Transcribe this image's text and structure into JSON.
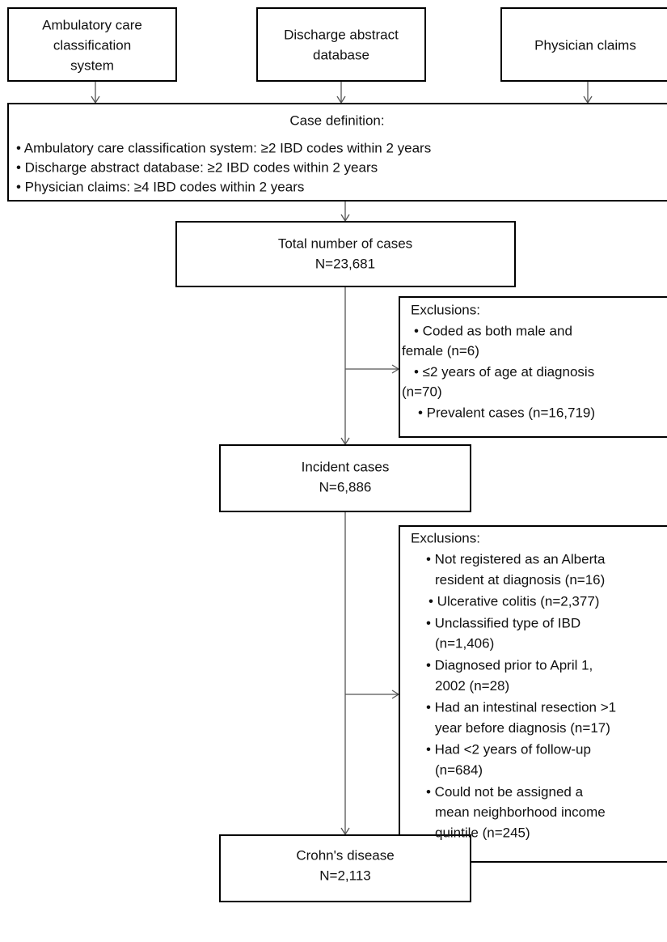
{
  "sources": [
    {
      "lines": [
        "Ambulatory care",
        "classification",
        "system"
      ]
    },
    {
      "lines": [
        "Discharge abstract",
        "database"
      ]
    },
    {
      "lines": [
        "Physician claims"
      ]
    }
  ],
  "case_definition": {
    "title": "Case definition:",
    "items": [
      "• Ambulatory care classification system: ≥2 IBD codes within 2 years",
      "• Discharge abstract database: ≥2 IBD codes within 2 years",
      "• Physician claims: ≥4 IBD codes within 2 years"
    ]
  },
  "total_cases": {
    "label": "Total number of cases",
    "count": "N=23,681"
  },
  "exclusions_1": {
    "title": "Exclusions:",
    "items": [
      [
        "• Coded as both male and",
        "female (n=6)"
      ],
      [
        "• ≤2 years of age at diagnosis",
        "(n=70)"
      ],
      [
        "• Prevalent cases (n=16,719)"
      ]
    ]
  },
  "incident_cases": {
    "label": "Incident cases",
    "count": "N=6,886"
  },
  "exclusions_2": {
    "title": "Exclusions:",
    "items": [
      [
        "• Not registered as an Alberta",
        "resident at diagnosis (n=16)"
      ],
      [
        "• Ulcerative colitis (n=2,377)"
      ],
      [
        "• Unclassified type of IBD",
        "(n=1,406)"
      ],
      [
        "• Diagnosed prior to April 1,",
        "2002 (n=28)"
      ],
      [
        "• Had an intestinal resection >1",
        "year before diagnosis (n=17)"
      ],
      [
        "• Had <2 years of follow-up",
        "(n=684)"
      ],
      [
        "• Could not be assigned a",
        "mean neighborhood income",
        "quintile (n=245)"
      ]
    ]
  },
  "crohns_disease": {
    "label": "Crohn's disease",
    "count": "N=2,113"
  }
}
